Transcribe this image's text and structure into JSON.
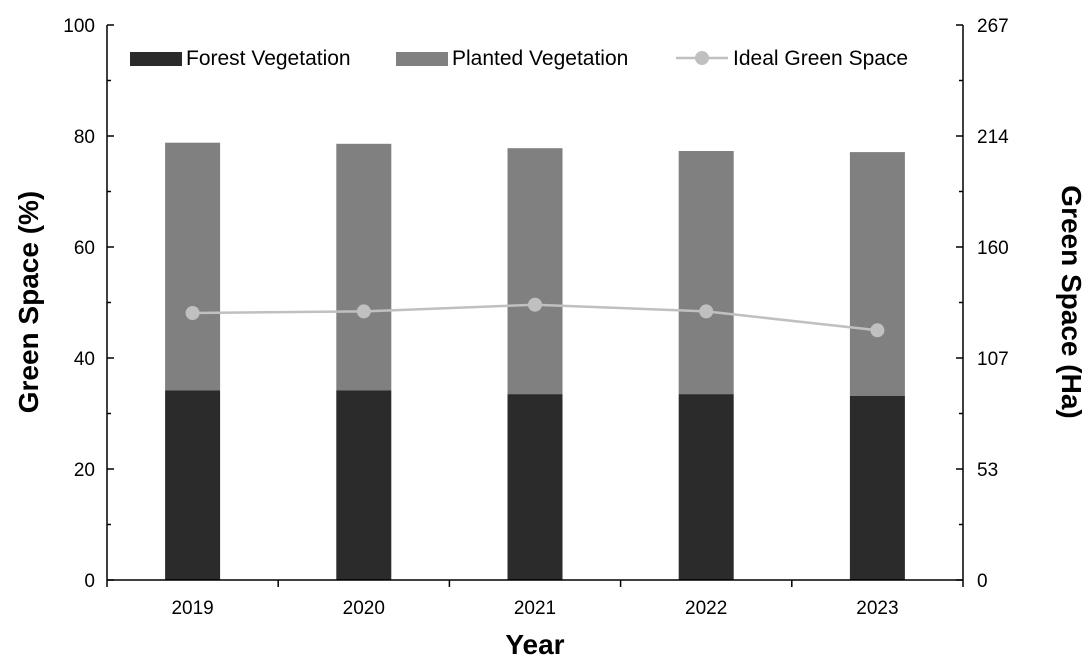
{
  "chart_data": {
    "type": "bar",
    "stacked": true,
    "xlabel": "Year",
    "ylabel": "Green Space (%)",
    "y2label": "Green Space (Ha)",
    "categories": [
      "2019",
      "2020",
      "2021",
      "2022",
      "2023"
    ],
    "ylim": [
      0,
      100
    ],
    "yticks": [
      0,
      20,
      40,
      60,
      80,
      100
    ],
    "y2lim": [
      0,
      267
    ],
    "y2ticks": [
      "0",
      "53",
      "107",
      "160",
      "214",
      "267"
    ],
    "legend_position": "top",
    "grid": false,
    "series": [
      {
        "name": "Forest Vegetation",
        "type": "bar",
        "color": "#2b2b2b",
        "values": [
          34.2,
          34.2,
          33.5,
          33.5,
          33.2
        ]
      },
      {
        "name": "Planted Vegetation",
        "type": "bar",
        "color": "#808080",
        "values": [
          44.6,
          44.4,
          44.3,
          43.8,
          43.9
        ]
      },
      {
        "name": "Ideal Green Space",
        "type": "line",
        "color": "#c0c0c0",
        "axis": "right",
        "values": [
          48.1,
          48.4,
          49.6,
          48.4,
          45.0
        ]
      }
    ]
  }
}
